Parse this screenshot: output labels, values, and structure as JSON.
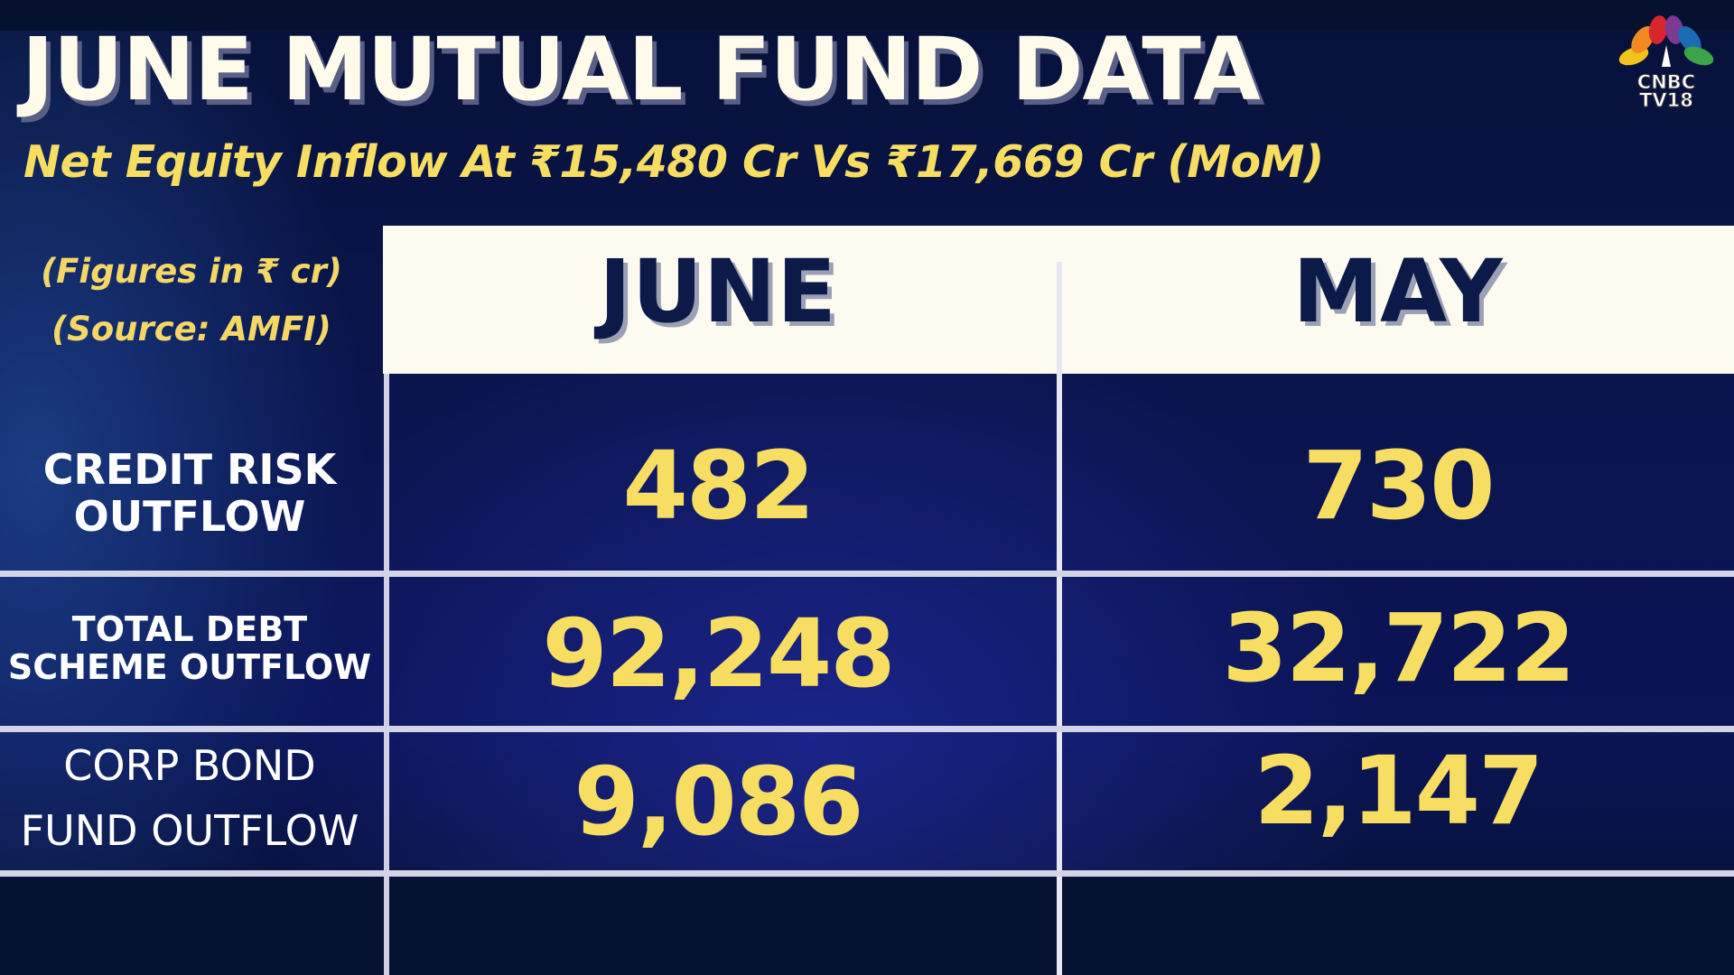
{
  "title": "JUNE MUTUAL FUND DATA",
  "subtitle": "Net Equity Inflow At ₹15,480 Cr Vs ₹17,669 Cr (MoM)",
  "logo": {
    "line1": "CNBC",
    "line2": "TV18",
    "icon": "peacock-logo-icon"
  },
  "notes": {
    "units": "(Figures in ₹ cr)",
    "source": "(Source: AMFI)"
  },
  "columns": [
    "JUNE",
    "MAY"
  ],
  "rows": [
    {
      "label_line1": "CREDIT RISK",
      "label_line2": "OUTFLOW",
      "june": "482",
      "may": "730"
    },
    {
      "label_line1": "TOTAL DEBT",
      "label_line2": "SCHEME OUTFLOW",
      "june": "92,248",
      "may": "32,722"
    },
    {
      "label_line1": "CORP BOND",
      "label_line2": "FUND OUTFLOW",
      "june": "9,086",
      "may": "2,147"
    }
  ],
  "colors": {
    "background": "#0a1550",
    "title": "#fffbea",
    "accent": "#f7dd62",
    "header_band": "#fdfbf0",
    "header_text": "#0b1a48",
    "grid": "#d3d4e6"
  }
}
